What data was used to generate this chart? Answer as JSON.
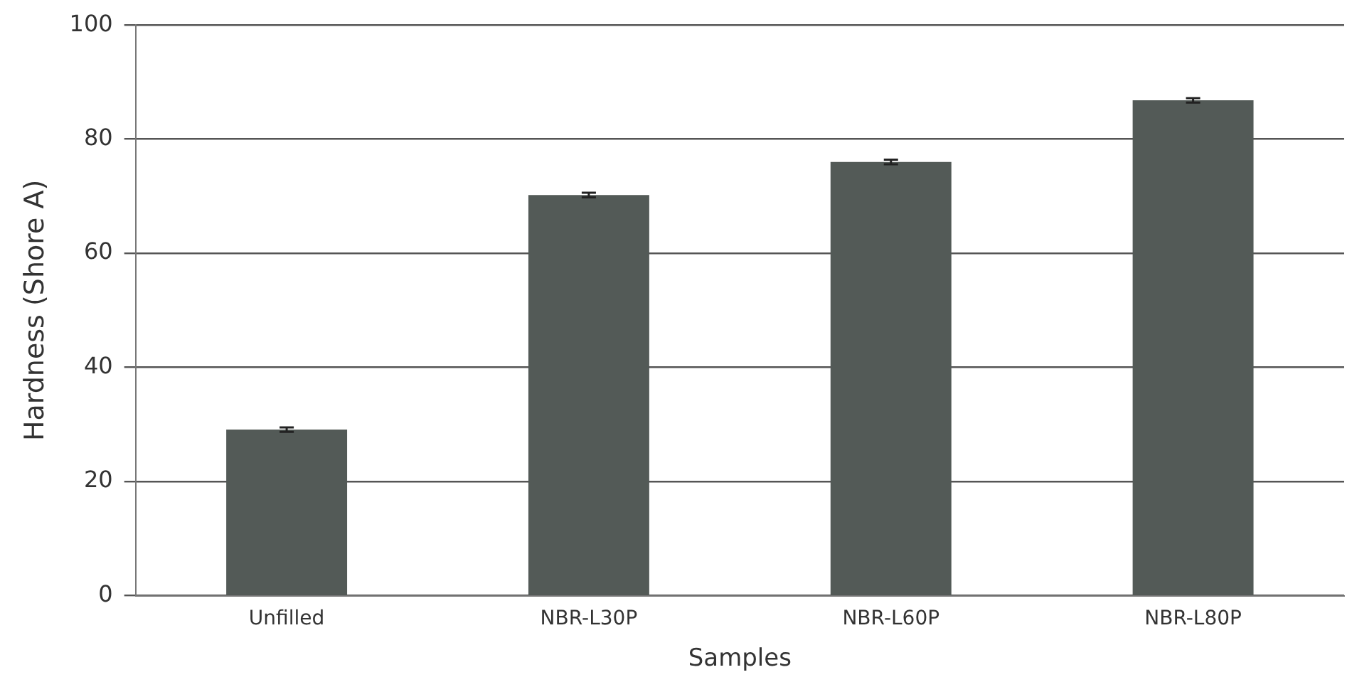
{
  "chart_data": {
    "type": "bar",
    "xlabel": "Samples",
    "ylabel": "Hardness (Shore A)",
    "categories": [
      "Unfilled",
      "NBR-L30P",
      "NBR-L60P",
      "NBR-L80P"
    ],
    "values": [
      29.1,
      70.2,
      76.0,
      86.8
    ],
    "errors": [
      0.4,
      0.4,
      0.4,
      0.4
    ],
    "color": "#535a57",
    "ylim": [
      0,
      100
    ],
    "yticks": [
      0,
      20,
      40,
      60,
      80,
      100
    ],
    "grid": "y",
    "legend": false
  }
}
